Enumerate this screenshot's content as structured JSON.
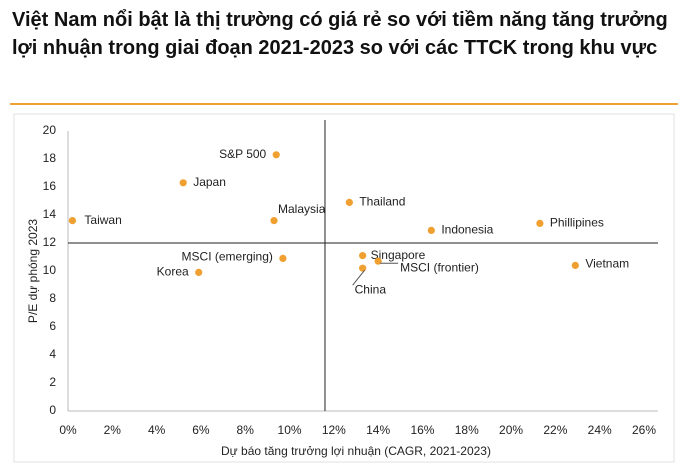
{
  "chart_data": {
    "type": "scatter",
    "title": "Việt Nam nổi bật là thị trường có giá rẻ so với tiềm năng tăng trưởng lợi nhuận trong giai đoạn 2021-2023 so với các TTCK trong khu vực",
    "x_label": "Dự báo tăng trưởng lợi nhuận (CAGR, 2021-2023)",
    "y_label": "P/E dự phóng 2023",
    "color": "#f0a030",
    "xlim": [
      0,
      26
    ],
    "ylim": [
      0,
      20
    ],
    "xticks": [
      {
        "value": 0,
        "label": "0%"
      },
      {
        "value": 2,
        "label": "2%"
      },
      {
        "value": 4,
        "label": "4%"
      },
      {
        "value": 6,
        "label": "6%"
      },
      {
        "value": 8,
        "label": "8%"
      },
      {
        "value": 10,
        "label": "10%"
      },
      {
        "value": 12,
        "label": "12%"
      },
      {
        "value": 14,
        "label": "14%"
      },
      {
        "value": 16,
        "label": "16%"
      },
      {
        "value": 18,
        "label": "18%"
      },
      {
        "value": 20,
        "label": "20%"
      },
      {
        "value": 22,
        "label": "22%"
      },
      {
        "value": 24,
        "label": "24%"
      },
      {
        "value": 26,
        "label": "26%"
      }
    ],
    "yticks": [
      0,
      2,
      4,
      6,
      8,
      10,
      12,
      14,
      16,
      18,
      20
    ],
    "reference_lines": {
      "x": 11.6,
      "y": 12
    },
    "points": [
      {
        "label": "Taiwan",
        "x": 0.2,
        "y": 13.6
      },
      {
        "label": "Japan",
        "x": 5.2,
        "y": 16.3
      },
      {
        "label": "S&P 500",
        "x": 9.4,
        "y": 18.3
      },
      {
        "label": "Malaysia",
        "x": 9.3,
        "y": 13.6
      },
      {
        "label": "MSCI (emerging)",
        "x": 9.7,
        "y": 10.9
      },
      {
        "label": "Korea",
        "x": 5.9,
        "y": 9.9
      },
      {
        "label": "Thailand",
        "x": 12.7,
        "y": 14.9
      },
      {
        "label": "Indonesia",
        "x": 16.4,
        "y": 12.9
      },
      {
        "label": "Phillipines",
        "x": 21.3,
        "y": 13.4
      },
      {
        "label": "Vietnam",
        "x": 22.9,
        "y": 10.4
      },
      {
        "label": "Singapore",
        "x": 13.3,
        "y": 11.1
      },
      {
        "label": "MSCI (frontier)",
        "x": 14.0,
        "y": 10.7
      },
      {
        "label": "China",
        "x": 13.3,
        "y": 10.2
      }
    ]
  }
}
